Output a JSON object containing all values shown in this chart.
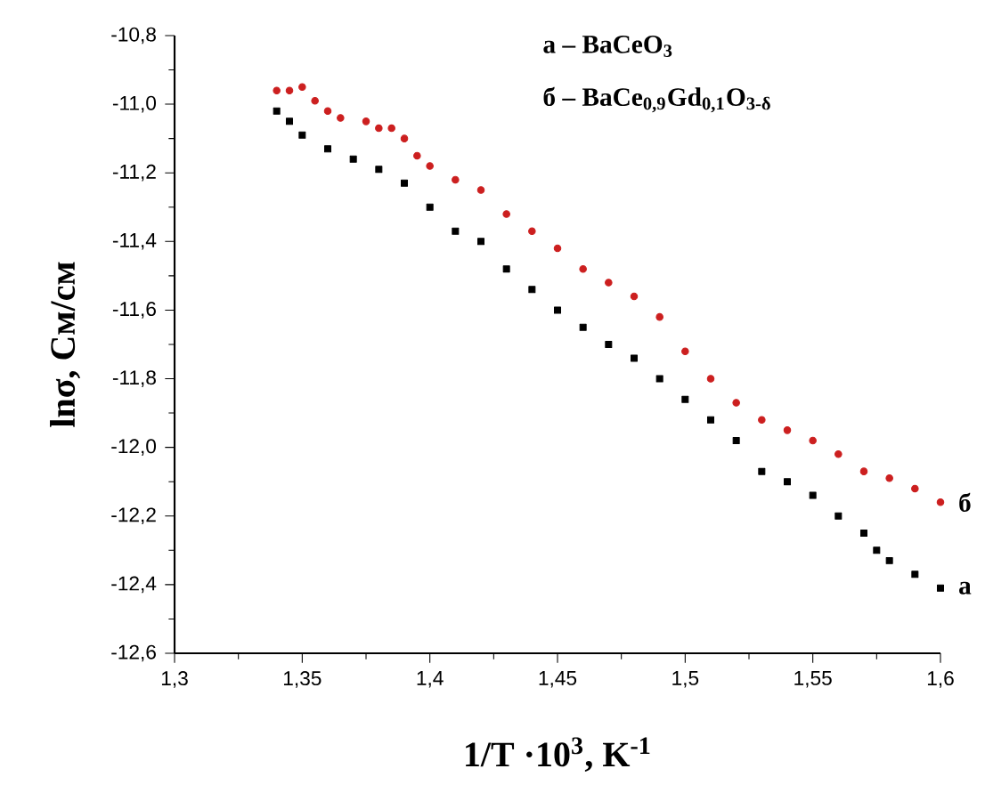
{
  "chart_data": {
    "type": "scatter",
    "xlabel": "1/T ·10$^{3}$, K$^{-1}$",
    "ylabel": "lnσ, См/см",
    "annotations": [
      "а – BaCeO$_{3}$",
      "б – BaCe$_{0,9}$Gd$_{0,1}$O$_{3-δ}$"
    ],
    "xlim": [
      1.3,
      1.6
    ],
    "ylim": [
      -12.6,
      -10.8
    ],
    "xticks": [
      {
        "value": 1.3,
        "label": "1,3"
      },
      {
        "value": 1.35,
        "label": "1,35"
      },
      {
        "value": 1.4,
        "label": "1,4"
      },
      {
        "value": 1.45,
        "label": "1,45"
      },
      {
        "value": 1.5,
        "label": "1,5"
      },
      {
        "value": 1.55,
        "label": "1,55"
      },
      {
        "value": 1.6,
        "label": "1,6"
      }
    ],
    "yticks": [
      {
        "value": -12.6,
        "label": "-12,6"
      },
      {
        "value": -12.4,
        "label": "-12,4"
      },
      {
        "value": -12.2,
        "label": "-12,2"
      },
      {
        "value": -12.0,
        "label": "-12,0"
      },
      {
        "value": -11.8,
        "label": "-11,8"
      },
      {
        "value": -11.6,
        "label": "-11,6"
      },
      {
        "value": -11.4,
        "label": "-11,4"
      },
      {
        "value": -11.2,
        "label": "-11,2"
      },
      {
        "value": -11.0,
        "label": "-11,0"
      },
      {
        "value": -10.8,
        "label": "-10,8"
      }
    ],
    "series": [
      {
        "name": "а",
        "color": "#000000",
        "marker": "square",
        "x": [
          1.34,
          1.345,
          1.35,
          1.36,
          1.37,
          1.38,
          1.39,
          1.4,
          1.41,
          1.42,
          1.43,
          1.44,
          1.45,
          1.46,
          1.47,
          1.48,
          1.49,
          1.5,
          1.51,
          1.52,
          1.53,
          1.54,
          1.55,
          1.56,
          1.57,
          1.575,
          1.58,
          1.59,
          1.6
        ],
        "values": [
          -11.02,
          -11.05,
          -11.09,
          -11.13,
          -11.16,
          -11.19,
          -11.23,
          -11.3,
          -11.37,
          -11.4,
          -11.48,
          -11.54,
          -11.6,
          -11.65,
          -11.7,
          -11.74,
          -11.8,
          -11.86,
          -11.92,
          -11.98,
          -12.07,
          -12.1,
          -12.14,
          -12.2,
          -12.25,
          -12.3,
          -12.33,
          -12.37,
          -12.41
        ]
      },
      {
        "name": "б",
        "color": "#cc1f1f",
        "marker": "circle",
        "x": [
          1.34,
          1.345,
          1.35,
          1.355,
          1.36,
          1.365,
          1.375,
          1.38,
          1.385,
          1.39,
          1.395,
          1.4,
          1.41,
          1.42,
          1.43,
          1.44,
          1.45,
          1.46,
          1.47,
          1.48,
          1.49,
          1.5,
          1.51,
          1.52,
          1.53,
          1.54,
          1.55,
          1.56,
          1.57,
          1.58,
          1.59,
          1.6
        ],
        "values": [
          -10.96,
          -10.96,
          -10.95,
          -10.99,
          -11.02,
          -11.04,
          -11.05,
          -11.07,
          -11.07,
          -11.1,
          -11.15,
          -11.18,
          -11.22,
          -11.25,
          -11.32,
          -11.37,
          -11.42,
          -11.48,
          -11.52,
          -11.56,
          -11.62,
          -11.72,
          -11.8,
          -11.87,
          -11.92,
          -11.95,
          -11.98,
          -12.02,
          -12.07,
          -12.09,
          -12.12,
          -12.16
        ]
      }
    ]
  }
}
